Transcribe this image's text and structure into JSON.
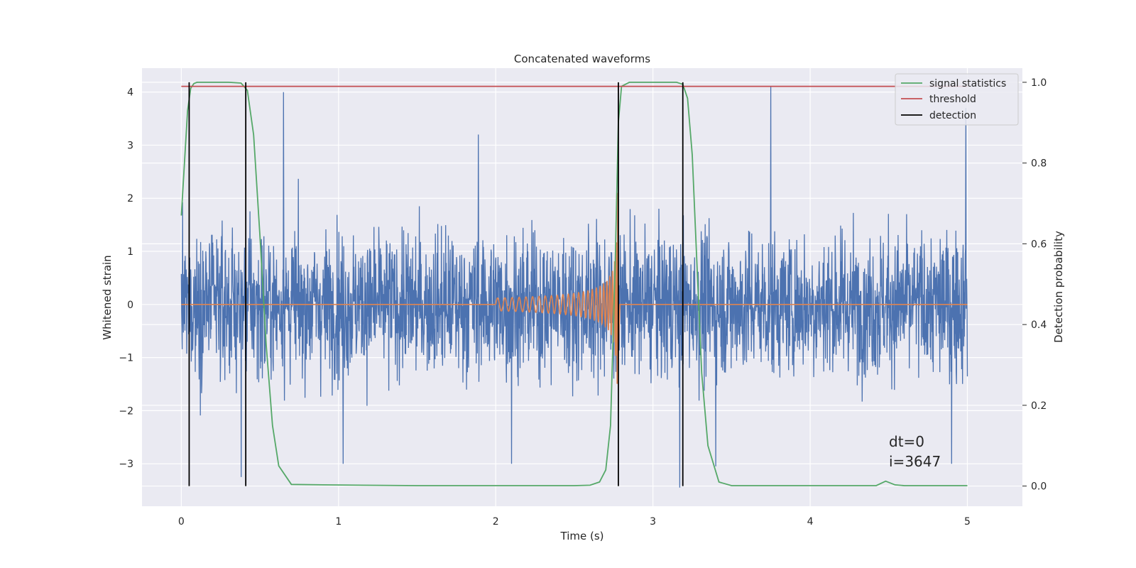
{
  "chart_data": {
    "type": "line",
    "title": "Concatenated waveforms",
    "xlabel": "Time (s)",
    "ylabel_left": "Whitened strain",
    "ylabel_right": "Detection probability",
    "xlim": [
      -0.25,
      5.35
    ],
    "ylim_left": [
      -3.8,
      4.45
    ],
    "ylim_right": [
      -0.05,
      1.035
    ],
    "x_ticks": [
      0,
      1,
      2,
      3,
      4,
      5
    ],
    "x_tick_labels": [
      "0",
      "1",
      "2",
      "3",
      "4",
      "5"
    ],
    "y_left_ticks": [
      -3,
      -2,
      -1,
      0,
      1,
      2,
      3,
      4
    ],
    "y_left_tick_labels": [
      "−3",
      "−2",
      "−1",
      "0",
      "1",
      "2",
      "3",
      "4"
    ],
    "y_right_ticks": [
      0.0,
      0.2,
      0.4,
      0.6,
      0.8,
      1.0
    ],
    "y_right_tick_labels": [
      "0.0",
      "0.2",
      "0.4",
      "0.6",
      "0.8",
      "1.0"
    ],
    "grid": true,
    "legend_position": "top-right",
    "noise": {
      "color": "#4c72b0",
      "x_range": [
        0,
        5
      ],
      "typical_amplitude": [
        -2.3,
        2.4
      ],
      "spikes": [
        {
          "x": 0.65,
          "y": 4.0
        },
        {
          "x": 1.89,
          "y": 3.2
        },
        {
          "x": 3.75,
          "y": 4.1
        },
        {
          "x": 4.99,
          "y": 3.7
        },
        {
          "x": 0.38,
          "y": -3.25
        },
        {
          "x": 1.03,
          "y": -3.0
        },
        {
          "x": 2.1,
          "y": -3.0
        },
        {
          "x": 3.17,
          "y": -3.45
        },
        {
          "x": 3.4,
          "y": -3.05
        },
        {
          "x": 4.9,
          "y": -3.0
        }
      ]
    },
    "chirp": {
      "color": "#dd8452",
      "x_start": 2.0,
      "x_merger": 2.78,
      "peak_amplitude": 2.1
    },
    "series": [
      {
        "name": "signal statistics",
        "color": "#55a868",
        "axis": "right",
        "x": [
          0,
          0.02,
          0.04,
          0.06,
          0.08,
          0.1,
          0.2,
          0.3,
          0.38,
          0.42,
          0.46,
          0.5,
          0.54,
          0.58,
          0.62,
          0.7,
          0.9,
          1.5,
          2.0,
          2.5,
          2.6,
          2.66,
          2.7,
          2.73,
          2.76,
          2.78,
          2.8,
          2.85,
          3.0,
          3.15,
          3.19,
          3.22,
          3.25,
          3.28,
          3.31,
          3.35,
          3.42,
          3.5,
          4.0,
          4.42,
          4.48,
          4.54,
          4.6,
          5.0
        ],
        "y": [
          0.67,
          0.8,
          0.93,
          0.985,
          0.997,
          1.0,
          1.0,
          1.0,
          0.998,
          0.98,
          0.87,
          0.62,
          0.35,
          0.15,
          0.05,
          0.004,
          0.003,
          0.001,
          0.001,
          0.001,
          0.002,
          0.01,
          0.04,
          0.15,
          0.55,
          0.9,
          0.99,
          1.0,
          1.0,
          1.0,
          0.995,
          0.96,
          0.82,
          0.55,
          0.28,
          0.1,
          0.01,
          0.001,
          0.001,
          0.001,
          0.012,
          0.003,
          0.001,
          0.001
        ]
      },
      {
        "name": "threshold",
        "color": "#c44e52",
        "axis": "right",
        "x": [
          0,
          5
        ],
        "y": [
          0.99,
          0.99
        ]
      },
      {
        "name": "detection",
        "color": "#000000",
        "axis": "right",
        "x": [
          0.05,
          0.41,
          2.78,
          3.19
        ],
        "y_range": [
          0,
          1.0
        ]
      }
    ],
    "annotations": [
      "dt=0",
      "i=3647"
    ]
  }
}
